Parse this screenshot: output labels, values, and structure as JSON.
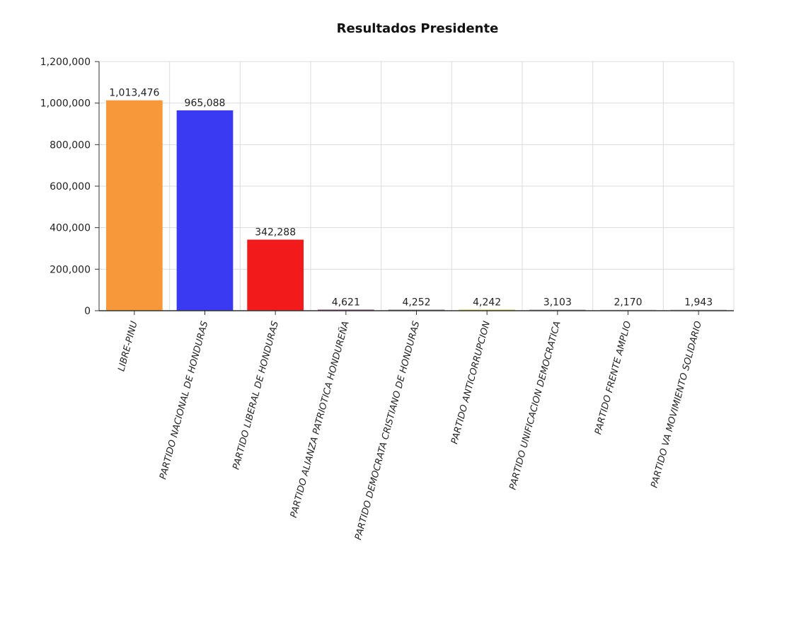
{
  "chart_data": {
    "type": "bar",
    "title": "Resultados Presidente",
    "xlabel": "",
    "ylabel": "",
    "ylim": [
      0,
      1200000
    ],
    "yticks": [
      0,
      200000,
      400000,
      600000,
      800000,
      1000000,
      1200000
    ],
    "ytick_labels": [
      "0",
      "200,000",
      "400,000",
      "600,000",
      "800,000",
      "1,000,000",
      "1,200,000"
    ],
    "grid": true,
    "categories": [
      "LIBRE-PINU",
      "PARTIDO NACIONAL DE HONDURAS",
      "PARTIDO LIBERAL DE HONDURAS",
      "PARTIDO ALIANZA PATRIOTICA HONDUREÑA",
      "PARTIDO DEMOCRATA CRISTIANO DE HONDURAS",
      "PARTIDO ANTICORRUPCION",
      "PARTIDO UNIFICACION DEMOCRATICA",
      "PARTIDO FRENTE AMPLIO",
      "PARTIDO VA MOVIMIENTO SOLIDARIO"
    ],
    "values": [
      1013476,
      965088,
      342288,
      4621,
      4252,
      4242,
      3103,
      2170,
      1943
    ],
    "value_labels": [
      "1,013,476",
      "965,088",
      "342,288",
      "4,621",
      "4,252",
      "4,242",
      "3,103",
      "2,170",
      "1,943"
    ],
    "colors": [
      "#f7983a",
      "#3a3af2",
      "#f21a1a",
      "#8a2c6e",
      "#7a7a7a",
      "#c8c832",
      "#9b9b9b",
      "#d2d2d2",
      "#c0c0c0"
    ]
  }
}
